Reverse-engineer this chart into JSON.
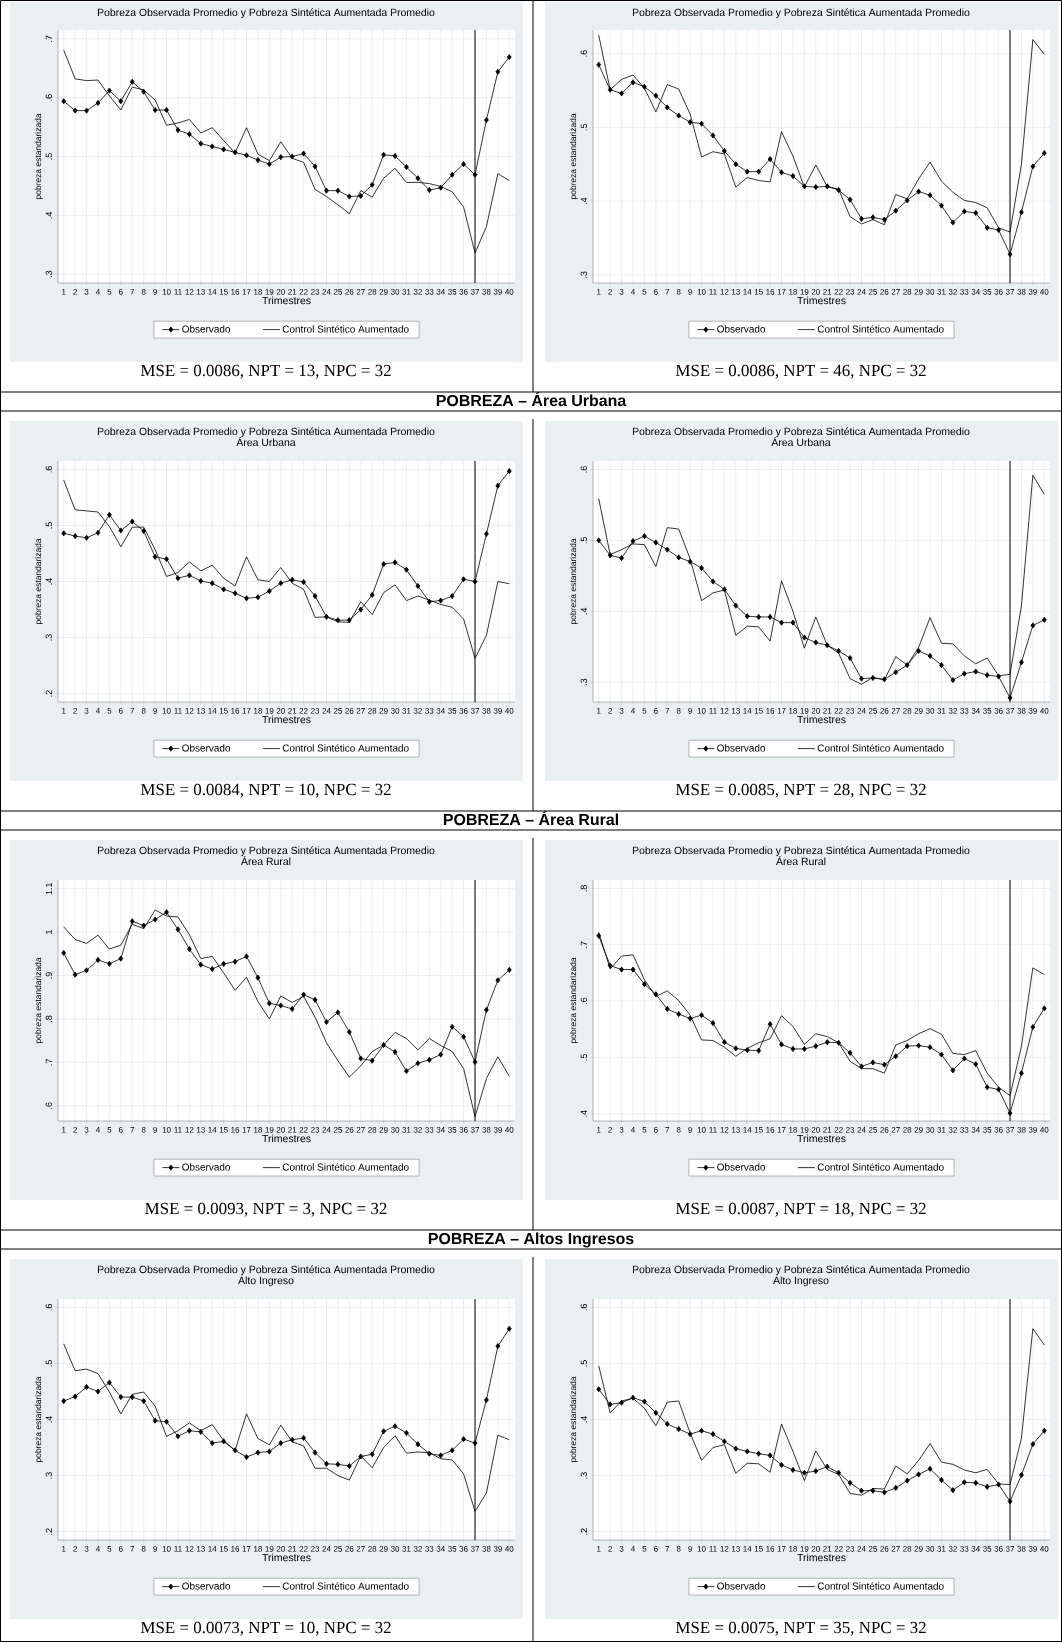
{
  "chart_data": [
    {
      "type": "line",
      "title": "Pobreza Observada Promedio y Pobreza Sintética Aumentada Promedio",
      "xlabel": "Trimestres",
      "ylabel": "pobreza estandarizada",
      "x": [
        1,
        2,
        3,
        4,
        5,
        6,
        7,
        8,
        9,
        10,
        11,
        12,
        13,
        14,
        15,
        16,
        17,
        18,
        19,
        20,
        21,
        22,
        23,
        24,
        25,
        26,
        27,
        28,
        29,
        30,
        31,
        32,
        33,
        34,
        35,
        36,
        37,
        38,
        39,
        40
      ],
      "xlim": [
        0.5,
        40.5
      ],
      "xticks": [
        1,
        2,
        3,
        4,
        5,
        6,
        7,
        8,
        9,
        10,
        11,
        12,
        13,
        14,
        15,
        16,
        17,
        18,
        19,
        20,
        21,
        22,
        23,
        24,
        25,
        26,
        27,
        28,
        29,
        30,
        31,
        32,
        33,
        34,
        35,
        36,
        37,
        38,
        39,
        40
      ],
      "ylim": [
        0.285,
        0.715
      ],
      "yticks": [
        {
          "value": 0.3,
          "label": ".3"
        },
        {
          "value": 0.4,
          "label": ".4"
        },
        {
          "value": 0.5,
          "label": ".5"
        },
        {
          "value": 0.6,
          "label": ".6"
        },
        {
          "value": 0.7,
          "label": ".7"
        }
      ],
      "grid": true,
      "legend": "bottom",
      "ref_lines": [
        {
          "axis": "x",
          "value": 37,
          "color": "#000000"
        }
      ],
      "series": [
        {
          "name": "Observado",
          "color": "#000000",
          "marker": "diamond",
          "values": [
            0.594,
            0.578,
            0.578,
            0.591,
            0.612,
            0.594,
            0.627,
            0.61,
            0.579,
            0.579,
            0.545,
            0.538,
            0.522,
            0.517,
            0.512,
            0.507,
            0.502,
            0.494,
            0.487,
            0.499,
            0.5,
            0.505,
            0.483,
            0.442,
            0.442,
            0.432,
            0.433,
            0.452,
            0.503,
            0.501,
            0.482,
            0.463,
            0.443,
            0.447,
            0.469,
            0.487,
            0.469,
            0.562,
            0.644,
            0.669
          ]
        },
        {
          "name": "Control Sintético Aumentado",
          "color": "#000000",
          "marker": "none",
          "values": [
            0.681,
            0.632,
            0.629,
            0.63,
            0.603,
            0.579,
            0.618,
            0.613,
            0.596,
            0.553,
            0.557,
            0.563,
            0.54,
            0.549,
            0.527,
            0.506,
            0.549,
            0.504,
            0.493,
            0.525,
            0.497,
            0.49,
            0.444,
            0.432,
            0.418,
            0.403,
            0.442,
            0.431,
            0.463,
            0.48,
            0.456,
            0.456,
            0.454,
            0.449,
            0.44,
            0.414,
            0.336,
            0.381,
            0.471,
            0.459
          ]
        }
      ],
      "annotations": [
        "MSE = 0.0086, NPT = 13, NPC = 32"
      ]
    },
    {
      "type": "line",
      "title": "Pobreza Observada Promedio y Pobreza Sintética Aumentada Promedio",
      "xlabel": "Trimestres",
      "ylabel": "pobreza estandarizada",
      "x": [
        1,
        2,
        3,
        4,
        5,
        6,
        7,
        8,
        9,
        10,
        11,
        12,
        13,
        14,
        15,
        16,
        17,
        18,
        19,
        20,
        21,
        22,
        23,
        24,
        25,
        26,
        27,
        28,
        29,
        30,
        31,
        32,
        33,
        34,
        35,
        36,
        37,
        38,
        39,
        40
      ],
      "xlim": [
        0.5,
        40.5
      ],
      "xticks": [
        1,
        2,
        3,
        4,
        5,
        6,
        7,
        8,
        9,
        10,
        11,
        12,
        13,
        14,
        15,
        16,
        17,
        18,
        19,
        20,
        21,
        22,
        23,
        24,
        25,
        26,
        27,
        28,
        29,
        30,
        31,
        32,
        33,
        34,
        35,
        36,
        37,
        38,
        39,
        40
      ],
      "ylim": [
        0.289,
        0.632
      ],
      "yticks": [
        {
          "value": 0.3,
          "label": ".3"
        },
        {
          "value": 0.4,
          "label": ".4"
        },
        {
          "value": 0.5,
          "label": ".5"
        },
        {
          "value": 0.6,
          "label": ".6"
        }
      ],
      "grid": true,
      "legend": "bottom",
      "ref_lines": [
        {
          "axis": "x",
          "value": 37,
          "color": "#000000"
        }
      ],
      "series": [
        {
          "name": "Observado",
          "color": "#000000",
          "marker": "diamond",
          "values": [
            0.585,
            0.551,
            0.546,
            0.561,
            0.555,
            0.543,
            0.527,
            0.516,
            0.507,
            0.505,
            0.489,
            0.468,
            0.45,
            0.44,
            0.44,
            0.457,
            0.439,
            0.434,
            0.42,
            0.419,
            0.42,
            0.415,
            0.402,
            0.376,
            0.378,
            0.375,
            0.387,
            0.401,
            0.413,
            0.408,
            0.394,
            0.371,
            0.386,
            0.384,
            0.364,
            0.361,
            0.328,
            0.385,
            0.447,
            0.465
          ]
        },
        {
          "name": "Control Sintético Aumentado",
          "color": "#000000",
          "marker": "none",
          "values": [
            0.625,
            0.551,
            0.565,
            0.571,
            0.553,
            0.521,
            0.558,
            0.552,
            0.518,
            0.46,
            0.467,
            0.464,
            0.419,
            0.432,
            0.428,
            0.426,
            0.494,
            0.461,
            0.419,
            0.449,
            0.42,
            0.416,
            0.379,
            0.369,
            0.375,
            0.368,
            0.409,
            0.403,
            0.43,
            0.453,
            0.427,
            0.412,
            0.401,
            0.398,
            0.391,
            0.364,
            0.358,
            0.45,
            0.619,
            0.599
          ]
        }
      ],
      "annotations": [
        "MSE = 0.0086, NPT = 46, NPC = 32"
      ]
    },
    {
      "type": "line",
      "title": "Pobreza Observada Promedio y Pobreza Sintética Aumentada Promedio",
      "subtitle": "Área Urbana",
      "xlabel": "Trimestres",
      "ylabel": "pobreza estandarizada",
      "x": [
        1,
        2,
        3,
        4,
        5,
        6,
        7,
        8,
        9,
        10,
        11,
        12,
        13,
        14,
        15,
        16,
        17,
        18,
        19,
        20,
        21,
        22,
        23,
        24,
        25,
        26,
        27,
        28,
        29,
        30,
        31,
        32,
        33,
        34,
        35,
        36,
        37,
        38,
        39,
        40
      ],
      "xlim": [
        0.5,
        40.5
      ],
      "xticks": [
        1,
        2,
        3,
        4,
        5,
        6,
        7,
        8,
        9,
        10,
        11,
        12,
        13,
        14,
        15,
        16,
        17,
        18,
        19,
        20,
        21,
        22,
        23,
        24,
        25,
        26,
        27,
        28,
        29,
        30,
        31,
        32,
        33,
        34,
        35,
        36,
        37,
        38,
        39,
        40
      ],
      "ylim": [
        0.185,
        0.615
      ],
      "yticks": [
        {
          "value": 0.2,
          "label": ".2"
        },
        {
          "value": 0.3,
          "label": ".3"
        },
        {
          "value": 0.4,
          "label": ".4"
        },
        {
          "value": 0.5,
          "label": ".5"
        },
        {
          "value": 0.6,
          "label": ".6"
        }
      ],
      "grid": true,
      "legend": "bottom",
      "ref_lines": [
        {
          "axis": "x",
          "value": 37,
          "color": "#000000"
        }
      ],
      "series": [
        {
          "name": "Observado",
          "color": "#000000",
          "marker": "diamond",
          "values": [
            0.486,
            0.481,
            0.478,
            0.487,
            0.519,
            0.491,
            0.507,
            0.49,
            0.444,
            0.44,
            0.406,
            0.411,
            0.401,
            0.397,
            0.386,
            0.379,
            0.37,
            0.372,
            0.383,
            0.397,
            0.403,
            0.399,
            0.374,
            0.337,
            0.331,
            0.331,
            0.35,
            0.376,
            0.431,
            0.434,
            0.421,
            0.392,
            0.364,
            0.366,
            0.374,
            0.404,
            0.4,
            0.485,
            0.571,
            0.597
          ]
        },
        {
          "name": "Control Sintético Aumentado",
          "color": "#000000",
          "marker": "none",
          "values": [
            0.581,
            0.528,
            0.526,
            0.524,
            0.498,
            0.462,
            0.497,
            0.497,
            0.457,
            0.409,
            0.416,
            0.435,
            0.419,
            0.429,
            0.406,
            0.392,
            0.444,
            0.403,
            0.4,
            0.425,
            0.397,
            0.386,
            0.336,
            0.337,
            0.328,
            0.327,
            0.364,
            0.341,
            0.38,
            0.394,
            0.366,
            0.374,
            0.367,
            0.359,
            0.354,
            0.333,
            0.263,
            0.304,
            0.4,
            0.396
          ]
        }
      ],
      "annotations": [
        "POBREZA – Área Urbana",
        "MSE = 0.0084, NPT = 10, NPC = 32"
      ]
    },
    {
      "type": "line",
      "title": "Pobreza Observada Promedio y Pobreza Sintética Aumentada Promedio",
      "subtitle": "Área Urbana",
      "xlabel": "Trimestres",
      "ylabel": "pobreza estandarizada",
      "x": [
        1,
        2,
        3,
        4,
        5,
        6,
        7,
        8,
        9,
        10,
        11,
        12,
        13,
        14,
        15,
        16,
        17,
        18,
        19,
        20,
        21,
        22,
        23,
        24,
        25,
        26,
        27,
        28,
        29,
        30,
        31,
        32,
        33,
        34,
        35,
        36,
        37,
        38,
        39,
        40
      ],
      "xlim": [
        0.5,
        40.5
      ],
      "xticks": [
        1,
        2,
        3,
        4,
        5,
        6,
        7,
        8,
        9,
        10,
        11,
        12,
        13,
        14,
        15,
        16,
        17,
        18,
        19,
        20,
        21,
        22,
        23,
        24,
        25,
        26,
        27,
        28,
        29,
        30,
        31,
        32,
        33,
        34,
        35,
        36,
        37,
        38,
        39,
        40
      ],
      "ylim": [
        0.272,
        0.612
      ],
      "yticks": [
        {
          "value": 0.3,
          "label": ".3"
        },
        {
          "value": 0.4,
          "label": ".4"
        },
        {
          "value": 0.5,
          "label": ".5"
        },
        {
          "value": 0.6,
          "label": ".6"
        }
      ],
      "grid": true,
      "legend": "bottom",
      "ref_lines": [
        {
          "axis": "x",
          "value": 37,
          "color": "#000000"
        }
      ],
      "series": [
        {
          "name": "Observado",
          "color": "#000000",
          "marker": "diamond",
          "values": [
            0.5,
            0.479,
            0.475,
            0.499,
            0.506,
            0.497,
            0.487,
            0.476,
            0.47,
            0.461,
            0.442,
            0.431,
            0.408,
            0.393,
            0.392,
            0.392,
            0.384,
            0.384,
            0.363,
            0.356,
            0.352,
            0.344,
            0.334,
            0.305,
            0.306,
            0.304,
            0.314,
            0.324,
            0.344,
            0.337,
            0.324,
            0.303,
            0.312,
            0.315,
            0.31,
            0.308,
            0.278,
            0.328,
            0.38,
            0.388
          ]
        },
        {
          "name": "Control Sintético Aumentado",
          "color": "#000000",
          "marker": "none",
          "values": [
            0.559,
            0.48,
            0.487,
            0.495,
            0.494,
            0.463,
            0.518,
            0.516,
            0.474,
            0.415,
            0.426,
            0.43,
            0.366,
            0.379,
            0.378,
            0.358,
            0.443,
            0.4,
            0.348,
            0.392,
            0.352,
            0.341,
            0.305,
            0.297,
            0.307,
            0.303,
            0.336,
            0.324,
            0.349,
            0.391,
            0.355,
            0.354,
            0.337,
            0.326,
            0.334,
            0.309,
            0.311,
            0.408,
            0.592,
            0.565
          ]
        }
      ],
      "annotations": [
        "MSE = 0.0085, NPT = 28, NPC = 32"
      ]
    },
    {
      "type": "line",
      "title": "Pobreza Observada Promedio y Pobreza Sintética Aumentada Promedio",
      "subtitle": "Área Rural",
      "xlabel": "Trimestres",
      "ylabel": "pobreza estandarizada",
      "x": [
        1,
        2,
        3,
        4,
        5,
        6,
        7,
        8,
        9,
        10,
        11,
        12,
        13,
        14,
        15,
        16,
        17,
        18,
        19,
        20,
        21,
        22,
        23,
        24,
        25,
        26,
        27,
        28,
        29,
        30,
        31,
        32,
        33,
        34,
        35,
        36,
        37,
        38,
        39,
        40
      ],
      "xlim": [
        0.5,
        40.5
      ],
      "xticks": [
        1,
        2,
        3,
        4,
        5,
        6,
        7,
        8,
        9,
        10,
        11,
        12,
        13,
        14,
        15,
        16,
        17,
        18,
        19,
        20,
        21,
        22,
        23,
        24,
        25,
        26,
        27,
        28,
        29,
        30,
        31,
        32,
        33,
        34,
        35,
        36,
        37,
        38,
        39,
        40
      ],
      "ylim": [
        0.565,
        1.12
      ],
      "yticks": [
        {
          "value": 0.6,
          "label": ".6"
        },
        {
          "value": 0.7,
          "label": ".7"
        },
        {
          "value": 0.8,
          "label": ".8"
        },
        {
          "value": 0.9,
          "label": ".9"
        },
        1,
        1.1
      ],
      "grid": true,
      "legend": "bottom",
      "ref_lines": [
        {
          "axis": "x",
          "value": 37,
          "color": "#000000"
        }
      ],
      "series": [
        {
          "name": "Observado",
          "color": "#000000",
          "marker": "diamond",
          "values": [
            0.952,
            0.902,
            0.912,
            0.936,
            0.927,
            0.939,
            1.025,
            1.015,
            1.029,
            1.046,
            1.006,
            0.961,
            0.925,
            0.915,
            0.927,
            0.932,
            0.944,
            0.895,
            0.836,
            0.831,
            0.823,
            0.856,
            0.844,
            0.793,
            0.815,
            0.77,
            0.709,
            0.704,
            0.74,
            0.724,
            0.68,
            0.698,
            0.706,
            0.718,
            0.782,
            0.759,
            0.701,
            0.821,
            0.889,
            0.913
          ]
        },
        {
          "name": "Control Sintético Aumentado",
          "color": "#000000",
          "marker": "none",
          "values": [
            1.012,
            0.983,
            0.974,
            0.993,
            0.961,
            0.97,
            1.018,
            1.008,
            1.051,
            1.037,
            1.035,
            0.994,
            0.939,
            0.944,
            0.906,
            0.866,
            0.896,
            0.84,
            0.8,
            0.853,
            0.838,
            0.852,
            0.804,
            0.745,
            0.704,
            0.666,
            0.692,
            0.725,
            0.74,
            0.769,
            0.755,
            0.729,
            0.755,
            0.739,
            0.725,
            0.686,
            0.575,
            0.663,
            0.713,
            0.668
          ]
        }
      ],
      "annotations": [
        "POBREZA – Área Rural",
        "MSE = 0.0093, NPT = 3, NPC = 32"
      ]
    },
    {
      "type": "line",
      "title": "Pobreza Observada Promedio y Pobreza Sintética Aumentada Promedio",
      "subtitle": "Área Rural",
      "xlabel": "Trimestres",
      "ylabel": "pobreza estandarizada",
      "x": [
        1,
        2,
        3,
        4,
        5,
        6,
        7,
        8,
        9,
        10,
        11,
        12,
        13,
        14,
        15,
        16,
        17,
        18,
        19,
        20,
        21,
        22,
        23,
        24,
        25,
        26,
        27,
        28,
        29,
        30,
        31,
        32,
        33,
        34,
        35,
        36,
        37,
        38,
        39,
        40
      ],
      "xlim": [
        0.5,
        40.5
      ],
      "xticks": [
        1,
        2,
        3,
        4,
        5,
        6,
        7,
        8,
        9,
        10,
        11,
        12,
        13,
        14,
        15,
        16,
        17,
        18,
        19,
        20,
        21,
        22,
        23,
        24,
        25,
        26,
        27,
        28,
        29,
        30,
        31,
        32,
        33,
        34,
        35,
        36,
        37,
        38,
        39,
        40
      ],
      "ylim": [
        0.387,
        0.815
      ],
      "yticks": [
        {
          "value": 0.4,
          "label": ".4"
        },
        {
          "value": 0.5,
          "label": ".5"
        },
        {
          "value": 0.6,
          "label": ".6"
        },
        {
          "value": 0.7,
          "label": ".7"
        },
        {
          "value": 0.8,
          "label": ".8"
        }
      ],
      "grid": true,
      "legend": "bottom",
      "ref_lines": [
        {
          "axis": "x",
          "value": 37,
          "color": "#000000"
        }
      ],
      "series": [
        {
          "name": "Observado",
          "color": "#000000",
          "marker": "diamond",
          "values": [
            0.716,
            0.663,
            0.656,
            0.656,
            0.63,
            0.612,
            0.586,
            0.577,
            0.569,
            0.575,
            0.561,
            0.527,
            0.516,
            0.513,
            0.512,
            0.559,
            0.523,
            0.515,
            0.515,
            0.52,
            0.527,
            0.526,
            0.508,
            0.484,
            0.491,
            0.487,
            0.502,
            0.52,
            0.521,
            0.518,
            0.505,
            0.477,
            0.498,
            0.488,
            0.447,
            0.443,
            0.401,
            0.472,
            0.554,
            0.587
          ]
        },
        {
          "name": "Control Sintético Aumentado",
          "color": "#000000",
          "marker": "none",
          "values": [
            0.722,
            0.657,
            0.68,
            0.682,
            0.638,
            0.608,
            0.618,
            0.601,
            0.575,
            0.531,
            0.53,
            0.518,
            0.502,
            0.516,
            0.526,
            0.533,
            0.574,
            0.555,
            0.523,
            0.542,
            0.537,
            0.526,
            0.493,
            0.48,
            0.48,
            0.472,
            0.522,
            0.53,
            0.542,
            0.551,
            0.541,
            0.507,
            0.505,
            0.512,
            0.472,
            0.447,
            0.432,
            0.52,
            0.659,
            0.647
          ]
        }
      ],
      "annotations": [
        "MSE = 0.0087, NPT = 18, NPC = 32"
      ]
    },
    {
      "type": "line",
      "title": "Pobreza Observada Promedio y Pobreza Sintética Aumentada Promedio",
      "subtitle": "Alto Ingreso",
      "xlabel": "Trimestres",
      "ylabel": "pobreza estandarizada",
      "x": [
        1,
        2,
        3,
        4,
        5,
        6,
        7,
        8,
        9,
        10,
        11,
        12,
        13,
        14,
        15,
        16,
        17,
        18,
        19,
        20,
        21,
        22,
        23,
        24,
        25,
        26,
        27,
        28,
        29,
        30,
        31,
        32,
        33,
        34,
        35,
        36,
        37,
        38,
        39,
        40
      ],
      "xlim": [
        0.5,
        40.5
      ],
      "xticks": [
        1,
        2,
        3,
        4,
        5,
        6,
        7,
        8,
        9,
        10,
        11,
        12,
        13,
        14,
        15,
        16,
        17,
        18,
        19,
        20,
        21,
        22,
        23,
        24,
        25,
        26,
        27,
        28,
        29,
        30,
        31,
        32,
        33,
        34,
        35,
        36,
        37,
        38,
        39,
        40
      ],
      "ylim": [
        0.185,
        0.615
      ],
      "yticks": [
        {
          "value": 0.2,
          "label": ".2"
        },
        {
          "value": 0.3,
          "label": ".3"
        },
        {
          "value": 0.4,
          "label": ".4"
        },
        {
          "value": 0.5,
          "label": ".5"
        },
        {
          "value": 0.6,
          "label": ".6"
        }
      ],
      "grid": true,
      "legend": "bottom",
      "ref_lines": [
        {
          "axis": "x",
          "value": 37,
          "color": "#000000"
        }
      ],
      "series": [
        {
          "name": "Observado",
          "color": "#000000",
          "marker": "diamond",
          "values": [
            0.433,
            0.441,
            0.458,
            0.45,
            0.466,
            0.44,
            0.44,
            0.433,
            0.398,
            0.396,
            0.37,
            0.38,
            0.378,
            0.358,
            0.361,
            0.345,
            0.333,
            0.341,
            0.343,
            0.358,
            0.364,
            0.367,
            0.341,
            0.321,
            0.32,
            0.317,
            0.334,
            0.338,
            0.379,
            0.388,
            0.376,
            0.356,
            0.339,
            0.336,
            0.345,
            0.365,
            0.358,
            0.435,
            0.531,
            0.562
          ]
        },
        {
          "name": "Control Sintético Aumentado",
          "color": "#000000",
          "marker": "none",
          "values": [
            0.535,
            0.487,
            0.49,
            0.482,
            0.449,
            0.41,
            0.445,
            0.449,
            0.424,
            0.37,
            0.38,
            0.394,
            0.38,
            0.391,
            0.362,
            0.345,
            0.41,
            0.366,
            0.355,
            0.39,
            0.36,
            0.353,
            0.313,
            0.313,
            0.3,
            0.292,
            0.335,
            0.314,
            0.35,
            0.371,
            0.34,
            0.342,
            0.341,
            0.33,
            0.328,
            0.303,
            0.236,
            0.269,
            0.372,
            0.364
          ]
        }
      ],
      "annotations": [
        "POBREZA – Altos Ingresos",
        "MSE = 0.0073, NPT = 10, NPC = 32"
      ]
    },
    {
      "type": "line",
      "title": "Pobreza Observada Promedio y Pobreza Sintética Aumentada Promedio",
      "subtitle": "Alto Ingreso",
      "xlabel": "Trimestres",
      "ylabel": "pobreza estandarizada",
      "x": [
        1,
        2,
        3,
        4,
        5,
        6,
        7,
        8,
        9,
        10,
        11,
        12,
        13,
        14,
        15,
        16,
        17,
        18,
        19,
        20,
        21,
        22,
        23,
        24,
        25,
        26,
        27,
        28,
        29,
        30,
        31,
        32,
        33,
        34,
        35,
        36,
        37,
        38,
        39,
        40
      ],
      "xlim": [
        0.5,
        40.5
      ],
      "xticks": [
        1,
        2,
        3,
        4,
        5,
        6,
        7,
        8,
        9,
        10,
        11,
        12,
        13,
        14,
        15,
        16,
        17,
        18,
        19,
        20,
        21,
        22,
        23,
        24,
        25,
        26,
        27,
        28,
        29,
        30,
        31,
        32,
        33,
        34,
        35,
        36,
        37,
        38,
        39,
        40
      ],
      "ylim": [
        0.185,
        0.615
      ],
      "yticks": [
        {
          "value": 0.2,
          "label": ".2"
        },
        {
          "value": 0.3,
          "label": ".3"
        },
        {
          "value": 0.4,
          "label": ".4"
        },
        {
          "value": 0.5,
          "label": ".5"
        },
        {
          "value": 0.6,
          "label": ".6"
        }
      ],
      "grid": true,
      "legend": "bottom",
      "ref_lines": [
        {
          "axis": "x",
          "value": 37,
          "color": "#000000"
        }
      ],
      "series": [
        {
          "name": "Observado",
          "color": "#000000",
          "marker": "diamond",
          "values": [
            0.454,
            0.427,
            0.43,
            0.439,
            0.432,
            0.412,
            0.392,
            0.383,
            0.374,
            0.38,
            0.374,
            0.361,
            0.348,
            0.343,
            0.339,
            0.336,
            0.319,
            0.31,
            0.305,
            0.308,
            0.316,
            0.305,
            0.287,
            0.273,
            0.273,
            0.27,
            0.278,
            0.291,
            0.302,
            0.312,
            0.292,
            0.274,
            0.288,
            0.287,
            0.28,
            0.284,
            0.254,
            0.301,
            0.356,
            0.38
          ]
        },
        {
          "name": "Control Sintético Aumentado",
          "color": "#000000",
          "marker": "none",
          "values": [
            0.496,
            0.412,
            0.433,
            0.438,
            0.42,
            0.389,
            0.431,
            0.433,
            0.376,
            0.327,
            0.35,
            0.355,
            0.304,
            0.322,
            0.321,
            0.306,
            0.392,
            0.343,
            0.291,
            0.344,
            0.311,
            0.302,
            0.268,
            0.265,
            0.277,
            0.276,
            0.317,
            0.303,
            0.327,
            0.357,
            0.324,
            0.32,
            0.31,
            0.305,
            0.311,
            0.285,
            0.284,
            0.367,
            0.562,
            0.533
          ]
        }
      ],
      "annotations": [
        "MSE = 0.0075, NPT = 35, NPC = 32"
      ]
    }
  ]
}
